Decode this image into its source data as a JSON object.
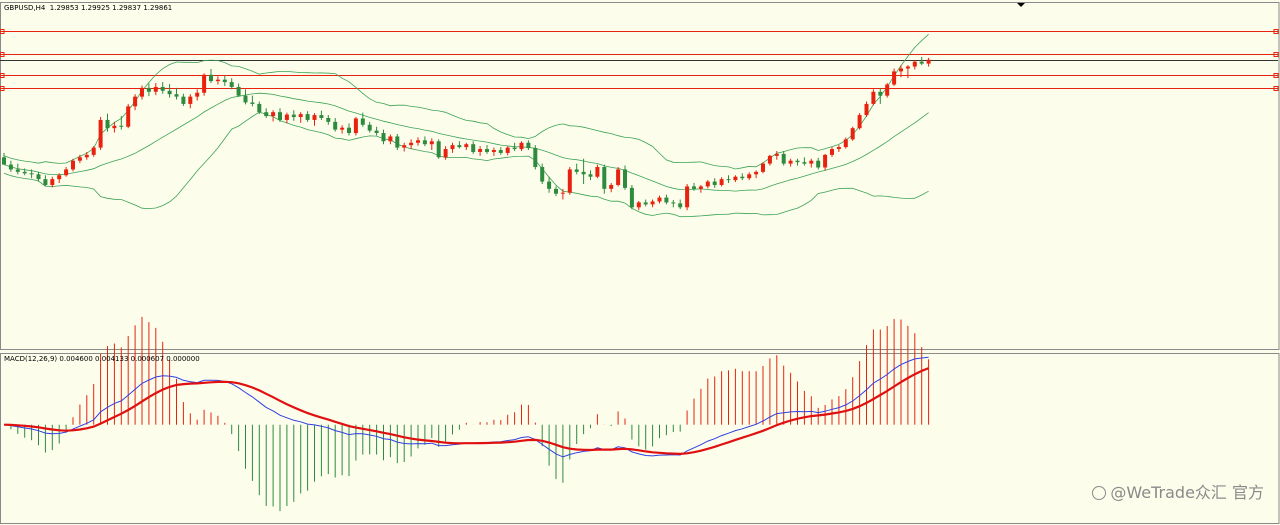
{
  "chart_title": {
    "symbol": "GBPUSD,H4",
    "quote": "1.29853 1.29925 1.29837 1.29861",
    "text": "GBPUSD,H4  1.29853 1.29925 1.29837 1.29861"
  },
  "macd_title": {
    "name": "MACD(12,26,9)",
    "values": "0.004600 0.004133 0.000607 0.000000",
    "text": "MACD(12,26,9) 0.004600 0.004133 0.000607 0.000000"
  },
  "watermark": {
    "text": "@WeTrade众汇 官方",
    "icon": "camera-icon"
  },
  "colors": {
    "background": "#fdfdec",
    "bull_candle": "#e8220f",
    "bear_candle": "#2e8b3e",
    "bollinger": "#3aa355",
    "level_line": "#e8220f",
    "current_price_line": "#333333",
    "macd_line": "#3040e0",
    "signal_line": "#e01010",
    "hist_pos": "#e8220f",
    "hist_neg": "#2e8b3e"
  },
  "chart_data": [
    {
      "type": "candlestick",
      "title": "GBPUSD,H4",
      "ylim": [
        1.239,
        1.3105
      ],
      "levels": [
        1.3045,
        1.2998,
        1.2955,
        1.2928
      ],
      "current_price": 1.29861,
      "ohlc": [
        [
          1.2785,
          1.2794,
          1.277,
          1.277
        ],
        [
          1.277,
          1.2778,
          1.2755,
          1.276
        ],
        [
          1.276,
          1.2772,
          1.275,
          1.2755
        ],
        [
          1.2755,
          1.2762,
          1.2748,
          1.2752
        ],
        [
          1.2752,
          1.276,
          1.2742,
          1.275
        ],
        [
          1.275,
          1.2755,
          1.2735,
          1.274
        ],
        [
          1.274,
          1.2748,
          1.2725,
          1.2728
        ],
        [
          1.2728,
          1.2745,
          1.2723,
          1.274
        ],
        [
          1.274,
          1.2752,
          1.2732,
          1.2748
        ],
        [
          1.2748,
          1.2765,
          1.2745,
          1.276
        ],
        [
          1.276,
          1.2782,
          1.2756,
          1.2778
        ],
        [
          1.2778,
          1.279,
          1.2773,
          1.2785
        ],
        [
          1.2785,
          1.2796,
          1.278,
          1.279
        ],
        [
          1.279,
          1.2808,
          1.2786,
          1.2805
        ],
        [
          1.2805,
          1.2868,
          1.28,
          1.2862
        ],
        [
          1.2862,
          1.2875,
          1.2838,
          1.2845
        ],
        [
          1.2845,
          1.2858,
          1.2836,
          1.285
        ],
        [
          1.285,
          1.287,
          1.2842,
          1.2848
        ],
        [
          1.2848,
          1.2895,
          1.2845,
          1.289
        ],
        [
          1.289,
          1.2915,
          1.2882,
          1.291
        ],
        [
          1.291,
          1.2933,
          1.2904,
          1.2928
        ],
        [
          1.2928,
          1.2937,
          1.2911,
          1.292
        ],
        [
          1.292,
          1.2938,
          1.2913,
          1.293
        ],
        [
          1.293,
          1.294,
          1.2916,
          1.2922
        ],
        [
          1.2922,
          1.2936,
          1.2908,
          1.2915
        ],
        [
          1.2915,
          1.2928,
          1.2904,
          1.291
        ],
        [
          1.291,
          1.2916,
          1.2891,
          1.2895
        ],
        [
          1.2895,
          1.2915,
          1.2886,
          1.291
        ],
        [
          1.291,
          1.2925,
          1.2902,
          1.2918
        ],
        [
          1.2918,
          1.2958,
          1.2912,
          1.2955
        ],
        [
          1.2955,
          1.2967,
          1.2938,
          1.2942
        ],
        [
          1.2942,
          1.2952,
          1.2935,
          1.2945
        ],
        [
          1.2945,
          1.2953,
          1.2932,
          1.294
        ],
        [
          1.294,
          1.2948,
          1.2925,
          1.293
        ],
        [
          1.293,
          1.2937,
          1.291,
          1.2912
        ],
        [
          1.2912,
          1.2925,
          1.2894,
          1.2898
        ],
        [
          1.2898,
          1.2912,
          1.289,
          1.2895
        ],
        [
          1.2895,
          1.29,
          1.2874,
          1.2878
        ],
        [
          1.2878,
          1.2886,
          1.2866,
          1.287
        ],
        [
          1.287,
          1.2882,
          1.2859,
          1.2878
        ],
        [
          1.2878,
          1.2886,
          1.2858,
          1.2862
        ],
        [
          1.2862,
          1.2877,
          1.2855,
          1.2873
        ],
        [
          1.2873,
          1.2882,
          1.286,
          1.2868
        ],
        [
          1.2868,
          1.2878,
          1.2856,
          1.2874
        ],
        [
          1.2874,
          1.288,
          1.2858,
          1.2862
        ],
        [
          1.2862,
          1.2876,
          1.285,
          1.2872
        ],
        [
          1.2872,
          1.2881,
          1.2862,
          1.2866
        ],
        [
          1.2866,
          1.2872,
          1.2852,
          1.2858
        ],
        [
          1.2858,
          1.2866,
          1.2838,
          1.2842
        ],
        [
          1.2842,
          1.2851,
          1.2834,
          1.2846
        ],
        [
          1.2846,
          1.2855,
          1.283,
          1.2835
        ],
        [
          1.2835,
          1.2868,
          1.283,
          1.2865
        ],
        [
          1.2865,
          1.2877,
          1.2848,
          1.2852
        ],
        [
          1.2852,
          1.2858,
          1.2836,
          1.284
        ],
        [
          1.284,
          1.2848,
          1.283,
          1.2835
        ],
        [
          1.2835,
          1.2842,
          1.2812,
          1.2818
        ],
        [
          1.2818,
          1.2832,
          1.2812,
          1.2828
        ],
        [
          1.2828,
          1.2833,
          1.28,
          1.2805
        ],
        [
          1.2805,
          1.2815,
          1.2797,
          1.281
        ],
        [
          1.281,
          1.2822,
          1.2802,
          1.2815
        ],
        [
          1.2815,
          1.2826,
          1.2809,
          1.282
        ],
        [
          1.282,
          1.2828,
          1.2808,
          1.2812
        ],
        [
          1.2812,
          1.2824,
          1.28,
          1.2818
        ],
        [
          1.2818,
          1.2822,
          1.2782,
          1.2785
        ],
        [
          1.2785,
          1.2808,
          1.278,
          1.2802
        ],
        [
          1.2802,
          1.2815,
          1.2794,
          1.281
        ],
        [
          1.281,
          1.2818,
          1.2803,
          1.2806
        ],
        [
          1.2806,
          1.2815,
          1.28,
          1.2812
        ],
        [
          1.2812,
          1.2818,
          1.2792,
          1.2796
        ],
        [
          1.2796,
          1.2808,
          1.2788,
          1.2802
        ],
        [
          1.2802,
          1.281,
          1.2792,
          1.2796
        ],
        [
          1.2796,
          1.2805,
          1.2788,
          1.28
        ],
        [
          1.28,
          1.2806,
          1.279,
          1.2794
        ],
        [
          1.2794,
          1.2808,
          1.2789,
          1.2805
        ],
        [
          1.2805,
          1.2815,
          1.2798,
          1.2802
        ],
        [
          1.2802,
          1.2818,
          1.2798,
          1.2815
        ],
        [
          1.2815,
          1.282,
          1.28,
          1.2804
        ],
        [
          1.2804,
          1.281,
          1.276,
          1.2765
        ],
        [
          1.2765,
          1.2772,
          1.273,
          1.2735
        ],
        [
          1.2735,
          1.2745,
          1.2712,
          1.272
        ],
        [
          1.272,
          1.2725,
          1.2705,
          1.271
        ],
        [
          1.271,
          1.272,
          1.2698,
          1.2712
        ],
        [
          1.2712,
          1.2765,
          1.2708,
          1.276
        ],
        [
          1.276,
          1.2772,
          1.275,
          1.2755
        ],
        [
          1.2755,
          1.2782,
          1.273,
          1.275
        ],
        [
          1.275,
          1.2758,
          1.2738,
          1.2745
        ],
        [
          1.2745,
          1.277,
          1.2742,
          1.2765
        ],
        [
          1.2765,
          1.277,
          1.271,
          1.272
        ],
        [
          1.272,
          1.2732,
          1.2713,
          1.2728
        ],
        [
          1.2728,
          1.2765,
          1.2725,
          1.276
        ],
        [
          1.276,
          1.2768,
          1.2718,
          1.2722
        ],
        [
          1.2722,
          1.2728,
          1.2678,
          1.2682
        ],
        [
          1.2682,
          1.2695,
          1.2676,
          1.2692
        ],
        [
          1.2692,
          1.2698,
          1.2684,
          1.2688
        ],
        [
          1.2688,
          1.2698,
          1.2682,
          1.2694
        ],
        [
          1.2694,
          1.2706,
          1.269,
          1.2702
        ],
        [
          1.2702,
          1.2708,
          1.2688,
          1.2692
        ],
        [
          1.2692,
          1.2697,
          1.2682,
          1.269
        ],
        [
          1.269,
          1.2698,
          1.2678,
          1.2682
        ],
        [
          1.2682,
          1.273,
          1.2676,
          1.2725
        ],
        [
          1.2725,
          1.2732,
          1.2716,
          1.272
        ],
        [
          1.272,
          1.2728,
          1.2712,
          1.2725
        ],
        [
          1.2725,
          1.2738,
          1.2721,
          1.2735
        ],
        [
          1.2735,
          1.2742,
          1.2722,
          1.2728
        ],
        [
          1.2728,
          1.2744,
          1.2725,
          1.274
        ],
        [
          1.274,
          1.2748,
          1.2732,
          1.2738
        ],
        [
          1.2738,
          1.2748,
          1.2734,
          1.2745
        ],
        [
          1.2745,
          1.2752,
          1.2738,
          1.2742
        ],
        [
          1.2742,
          1.2754,
          1.2738,
          1.275
        ],
        [
          1.275,
          1.2758,
          1.2742,
          1.2755
        ],
        [
          1.2755,
          1.2775,
          1.2752,
          1.2772
        ],
        [
          1.2772,
          1.279,
          1.2768,
          1.2788
        ],
        [
          1.2788,
          1.2798,
          1.278,
          1.2792
        ],
        [
          1.2792,
          1.2798,
          1.2768,
          1.2772
        ],
        [
          1.2772,
          1.2782,
          1.2766,
          1.2778
        ],
        [
          1.2778,
          1.2782,
          1.2768,
          1.2775
        ],
        [
          1.2775,
          1.2785,
          1.2768,
          1.2772
        ],
        [
          1.2772,
          1.2782,
          1.2764,
          1.2778
        ],
        [
          1.2778,
          1.2784,
          1.276,
          1.2764
        ],
        [
          1.2764,
          1.2792,
          1.2758,
          1.279
        ],
        [
          1.279,
          1.2806,
          1.2786,
          1.2802
        ],
        [
          1.2802,
          1.281,
          1.2796,
          1.2806
        ],
        [
          1.2806,
          1.2826,
          1.2803,
          1.2822
        ],
        [
          1.2822,
          1.2848,
          1.2819,
          1.2845
        ],
        [
          1.2845,
          1.2876,
          1.2842,
          1.2872
        ],
        [
          1.2872,
          1.29,
          1.2868,
          1.2895
        ],
        [
          1.2895,
          1.2925,
          1.2892,
          1.292
        ],
        [
          1.292,
          1.2928,
          1.2895,
          1.2912
        ],
        [
          1.2912,
          1.2938,
          1.2908,
          1.2935
        ],
        [
          1.2935,
          1.2968,
          1.2932,
          1.2962
        ],
        [
          1.2962,
          1.2975,
          1.295,
          1.2968
        ],
        [
          1.2968,
          1.2975,
          1.2948,
          1.2972
        ],
        [
          1.2972,
          1.2985,
          1.2966,
          1.2982
        ],
        [
          1.2982,
          1.2992,
          1.2975,
          1.2978
        ],
        [
          1.2978,
          1.299,
          1.2972,
          1.2986
        ]
      ]
    },
    {
      "type": "macd",
      "title": "MACD(12,26,9)",
      "ylim": [
        -0.0085,
        0.0062
      ]
    }
  ]
}
